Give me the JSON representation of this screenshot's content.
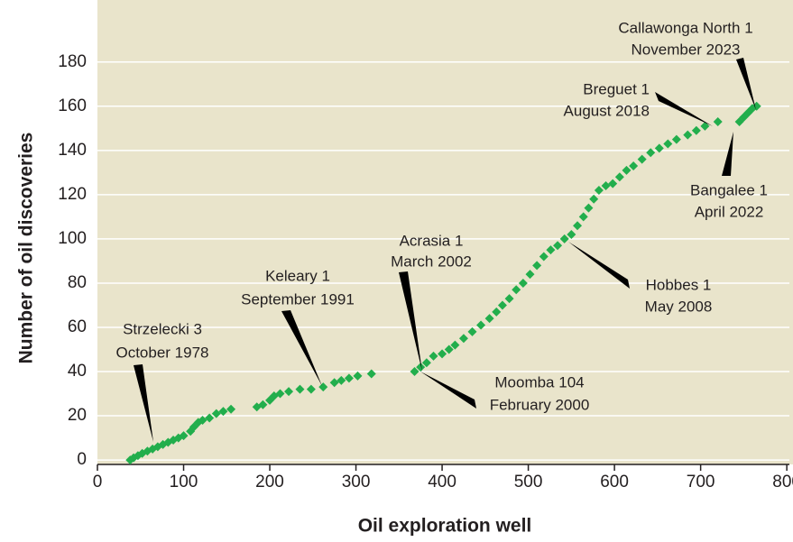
{
  "chart_data": {
    "type": "scatter",
    "xlabel": "Oil exploration well",
    "ylabel": "Number of oil discoveries",
    "series": [
      {
        "name": "Oil discoveries",
        "color": "#22ae4c",
        "x": [
          38,
          42,
          47,
          52,
          58,
          64,
          70,
          76,
          82,
          88,
          94,
          100,
          108,
          112,
          117,
          122,
          130,
          138,
          146,
          155,
          185,
          192,
          200,
          205,
          212,
          222,
          235,
          248,
          262,
          275,
          283,
          292,
          302,
          318,
          368,
          375,
          382,
          390,
          400,
          408,
          415,
          425,
          435,
          445,
          455,
          463,
          470,
          478,
          486,
          494,
          502,
          510,
          518,
          526,
          534,
          542,
          550,
          557,
          564,
          570,
          576,
          582,
          590,
          598,
          606,
          614,
          622,
          632,
          642,
          652,
          662,
          672,
          685,
          695,
          705,
          720,
          745,
          750,
          755,
          760,
          765
        ],
        "values": [
          0,
          1,
          2,
          3,
          4,
          5,
          6,
          7,
          8,
          9,
          10,
          11,
          13,
          15,
          17,
          18,
          19,
          21,
          22,
          23,
          24,
          25,
          27,
          29,
          30,
          31,
          32,
          32,
          33,
          35,
          36,
          37,
          38,
          39,
          40,
          42,
          44,
          47,
          48,
          50,
          52,
          55,
          58,
          61,
          64,
          67,
          70,
          73,
          77,
          80,
          84,
          88,
          92,
          95,
          97,
          100,
          102,
          106,
          110,
          114,
          118,
          122,
          124,
          125,
          128,
          131,
          133,
          136,
          139,
          141,
          143,
          145,
          147,
          149,
          151,
          153,
          153,
          155,
          157,
          159,
          160
        ]
      }
    ],
    "xlim": [
      0,
      803
    ],
    "ylim": [
      -2,
      206
    ],
    "xticks": [
      0,
      100,
      200,
      300,
      400,
      500,
      600,
      700,
      800
    ],
    "yticks": [
      0,
      20,
      40,
      60,
      80,
      100,
      120,
      140,
      160,
      180
    ],
    "annotations": [
      {
        "name": "Strzelecki 3",
        "date": "October 1978"
      },
      {
        "name": "Keleary 1",
        "date": "September 1991"
      },
      {
        "name": "Acrasia 1",
        "date": "March 2002"
      },
      {
        "name": "Moomba 104",
        "date": "February 2000"
      },
      {
        "name": "Hobbes 1",
        "date": "May 2008"
      },
      {
        "name": "Breguet 1",
        "date": "August 2018"
      },
      {
        "name": "Bangalee 1",
        "date": "April 2022"
      },
      {
        "name": "Callawonga North 1",
        "date": "November 2023"
      }
    ]
  }
}
